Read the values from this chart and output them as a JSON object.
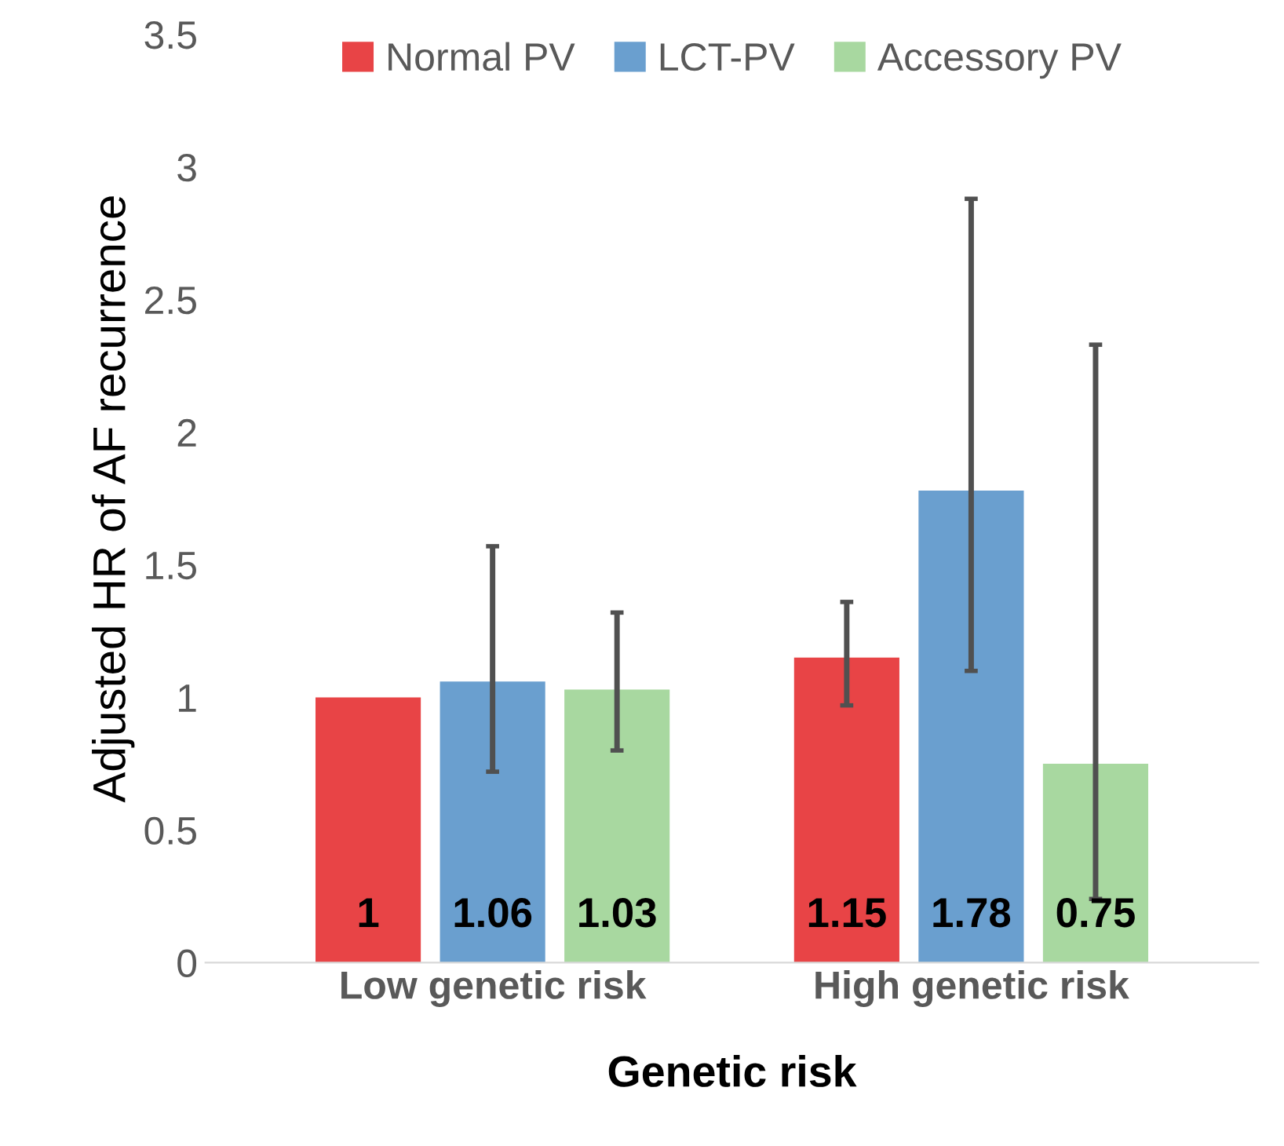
{
  "chart_data": {
    "type": "bar",
    "xlabel": "Genetic risk",
    "ylabel": "Adjusted HR of AF recurrence",
    "categories": [
      "Low genetic risk",
      "High genetic risk"
    ],
    "series": [
      {
        "name": "Normal PV",
        "color": "#e84446",
        "values": [
          1,
          1.15
        ],
        "errors": [
          null,
          [
            0.97,
            1.36
          ]
        ]
      },
      {
        "name": "LCT-PV",
        "color": "#6a9fcf",
        "values": [
          1.06,
          1.78
        ],
        "errors": [
          [
            0.72,
            1.57
          ],
          [
            1.1,
            2.88
          ]
        ]
      },
      {
        "name": "Accessory PV",
        "color": "#a8d8a0",
        "values": [
          1.03,
          0.75
        ],
        "errors": [
          [
            0.8,
            1.32
          ],
          [
            0.24,
            2.33
          ]
        ]
      }
    ],
    "ylim": [
      0,
      3.5
    ],
    "yticks": [
      0,
      0.5,
      1,
      1.5,
      2,
      2.5,
      3,
      3.5
    ],
    "grid": false,
    "legend": "top",
    "data_labels": true
  }
}
